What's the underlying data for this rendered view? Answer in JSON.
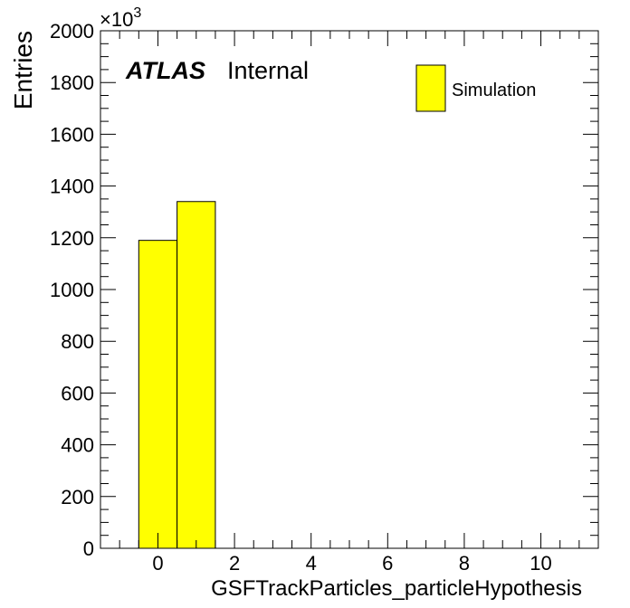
{
  "chart_data": {
    "type": "bar",
    "title": "",
    "xlabel": "GSFTrackParticles_particleHypothesis",
    "ylabel": "Entries",
    "y_multiplier": "×10",
    "y_multiplier_exp": "3",
    "xlim": [
      -1.5,
      11.5
    ],
    "ylim": [
      0,
      2000
    ],
    "x_ticks": [
      0,
      2,
      4,
      6,
      8,
      10
    ],
    "y_ticks": [
      0,
      200,
      400,
      600,
      800,
      1000,
      1200,
      1400,
      1600,
      1800,
      2000
    ],
    "bins": [
      {
        "x_low": -0.5,
        "x_high": 0.5,
        "value": 1190
      },
      {
        "x_low": 0.5,
        "x_high": 1.5,
        "value": 1340
      }
    ],
    "series": [
      {
        "name": "Simulation",
        "color": "#ffff00"
      }
    ],
    "legend_position": "top-right",
    "grid": false
  },
  "labels": {
    "atlas": "ATLAS",
    "internal": "Internal",
    "legend_simulation": "Simulation"
  },
  "colors": {
    "fill": "#ffff00",
    "line": "#000000"
  }
}
